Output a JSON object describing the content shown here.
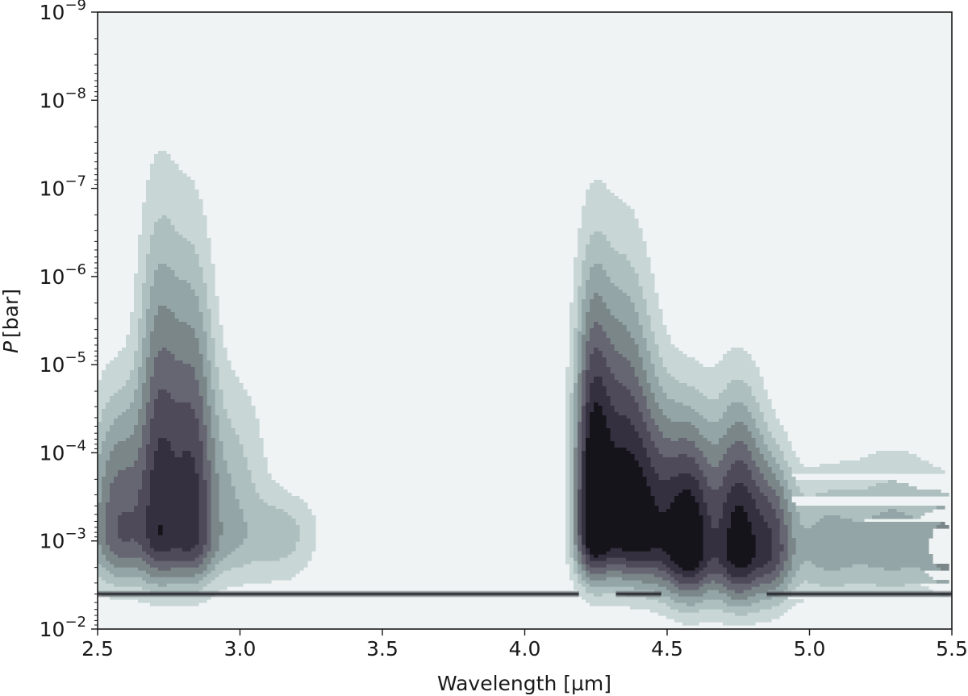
{
  "chart_data": {
    "type": "contour",
    "title": "",
    "xlabel": "Wavelength  [µm]",
    "ylabel_symbol": "P",
    "ylabel_unit": "[bar]",
    "xlim": [
      2.5,
      5.5
    ],
    "ylim": [
      0.01,
      1e-09
    ],
    "yscale": "log",
    "y_inverted": true,
    "grid": false,
    "legend": "none",
    "x_ticks": [
      {
        "value": 2.5,
        "label": "2.5"
      },
      {
        "value": 3.0,
        "label": "3.0"
      },
      {
        "value": 3.5,
        "label": "3.5"
      },
      {
        "value": 4.0,
        "label": "4.0"
      },
      {
        "value": 4.5,
        "label": "4.5"
      },
      {
        "value": 5.0,
        "label": "5.0"
      },
      {
        "value": 5.5,
        "label": "5.5"
      }
    ],
    "y_ticks": [
      {
        "value": 1e-09,
        "base": "10",
        "exp": "−9"
      },
      {
        "value": 1e-08,
        "base": "10",
        "exp": "−8"
      },
      {
        "value": 1e-07,
        "base": "10",
        "exp": "−7"
      },
      {
        "value": 1e-06,
        "base": "10",
        "exp": "−6"
      },
      {
        "value": 1e-05,
        "base": "10",
        "exp": "−5"
      },
      {
        "value": 0.0001,
        "base": "10",
        "exp": "−4"
      },
      {
        "value": 0.001,
        "base": "10",
        "exp": "−3"
      },
      {
        "value": 0.01,
        "base": "10",
        "exp": "−2"
      }
    ],
    "levels": [
      "#c9d6d6",
      "#aebfbf",
      "#94a5a7",
      "#7b8689",
      "#666572",
      "#4f4a5a",
      "#353040",
      "#15141b"
    ],
    "background_color": "#eff3f3",
    "blobs": [
      {
        "x": 2.58,
        "p": 0.0008,
        "peak": 1e-05,
        "wx": 0.07,
        "amp": 0.55
      },
      {
        "x": 2.72,
        "p": 0.0008,
        "peak": 1e-07,
        "wx": 0.05,
        "amp": 0.72
      },
      {
        "x": 2.83,
        "p": 0.0008,
        "peak": 2e-07,
        "wx": 0.05,
        "amp": 0.66
      },
      {
        "x": 2.95,
        "p": 0.0008,
        "peak": 5e-06,
        "wx": 0.09,
        "amp": 0.22
      },
      {
        "x": 3.15,
        "p": 0.0008,
        "peak": 0.0002,
        "wx": 0.08,
        "amp": 0.15
      },
      {
        "x": 4.24,
        "p": 0.0007,
        "peak": 4e-07,
        "wx": 0.04,
        "amp": 0.96
      },
      {
        "x": 4.34,
        "p": 0.0007,
        "peak": 4e-07,
        "wx": 0.07,
        "amp": 0.86
      },
      {
        "x": 4.45,
        "p": 0.0009,
        "peak": 1e-05,
        "wx": 0.07,
        "amp": 0.6
      },
      {
        "x": 4.58,
        "p": 0.0012,
        "peak": 2e-05,
        "wx": 0.06,
        "amp": 1.0
      },
      {
        "x": 4.75,
        "p": 0.0013,
        "peak": 1.3e-05,
        "wx": 0.06,
        "amp": 0.95
      },
      {
        "x": 4.87,
        "p": 0.0012,
        "peak": 6e-05,
        "wx": 0.05,
        "amp": 0.55
      },
      {
        "x": 5.05,
        "p": 0.0012,
        "peak": 0.0001,
        "wx": 0.09,
        "amp": 0.22
      },
      {
        "x": 5.3,
        "p": 0.0012,
        "peak": 6e-05,
        "wx": 0.12,
        "amp": 0.25
      },
      {
        "x": 5.48,
        "p": 0.0012,
        "peak": 0.0002,
        "wx": 0.05,
        "amp": 0.3
      }
    ],
    "floor_pressure": 0.004,
    "floor_segments": [
      [
        2.5,
        4.19
      ],
      [
        4.32,
        4.48
      ],
      [
        4.85,
        5.5
      ]
    ]
  }
}
